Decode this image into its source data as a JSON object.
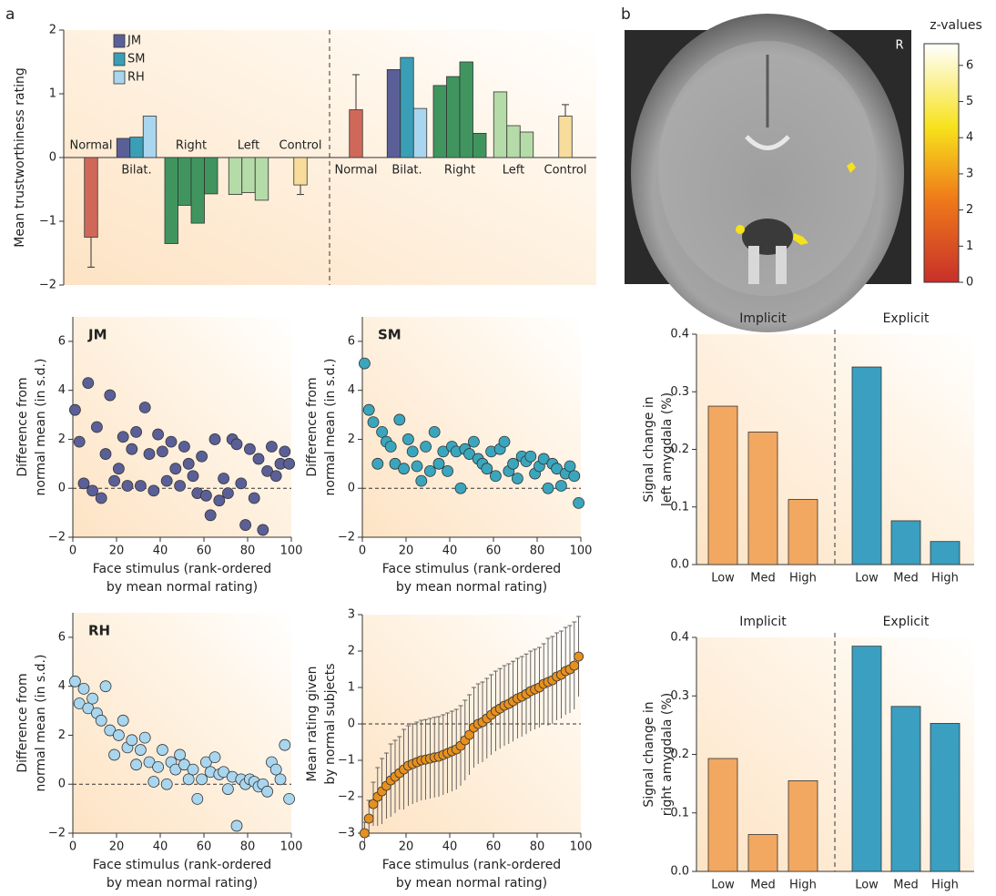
{
  "chart_data": [
    {
      "type": "grouped-bar",
      "panel": "a",
      "ylabel": "Mean trustworthiness rating",
      "ylim": [
        -2,
        2
      ],
      "yticks": [
        {
          "value": -2,
          "label": "−2"
        },
        {
          "value": -1,
          "label": "−1"
        },
        0,
        1,
        2
      ],
      "series": [
        {
          "name": "JM",
          "color": "#5b5f98"
        },
        {
          "name": "SM",
          "color": "#3a9fb6"
        },
        {
          "name": "RH",
          "color": "#a9d6ee"
        }
      ],
      "groups": [
        {
          "label": "Normal",
          "values": [
            -1.25
          ],
          "errors": [
            0.47
          ],
          "colors": [
            "#d0685a"
          ]
        },
        {
          "label": "Bilat.",
          "values": [
            0.3,
            0.32,
            0.65
          ],
          "colors": [
            "#5b5f98",
            "#3a9fb6",
            "#a9d6ee"
          ]
        },
        {
          "label": "Right",
          "values": [
            -1.35,
            -0.75,
            -1.03,
            -0.57
          ],
          "colors": [
            "#40955f",
            "#40955f",
            "#40955f",
            "#40955f"
          ]
        },
        {
          "label": "Left",
          "values": [
            -0.58,
            -0.55,
            -0.67
          ],
          "colors": [
            "#b4dba8",
            "#b4dba8",
            "#b4dba8"
          ]
        },
        {
          "label": "Control",
          "values": [
            -0.43
          ],
          "errors": [
            0.15
          ],
          "colors": [
            "#f8dc9c"
          ]
        },
        {
          "label": "Normal",
          "values": [
            0.75
          ],
          "errors": [
            0.55
          ],
          "colors": [
            "#d0685a"
          ]
        },
        {
          "label": "Bilat.",
          "values": [
            1.38,
            1.57,
            0.77
          ],
          "colors": [
            "#5b5f98",
            "#3a9fb6",
            "#a9d6ee"
          ]
        },
        {
          "label": "Right",
          "values": [
            1.13,
            1.27,
            1.5,
            0.38
          ],
          "colors": [
            "#40955f",
            "#40955f",
            "#40955f",
            "#40955f"
          ]
        },
        {
          "label": "Left",
          "values": [
            1.03,
            0.5,
            0.4
          ],
          "colors": [
            "#b4dba8",
            "#b4dba8",
            "#b4dba8"
          ]
        },
        {
          "label": "Control",
          "values": [
            0.65
          ],
          "errors": [
            0.18
          ],
          "colors": [
            "#f8dc9c"
          ]
        }
      ]
    },
    {
      "type": "colorbar",
      "panel": "b",
      "title": "z-values",
      "annotation": "R",
      "ylim": [
        0,
        6.6
      ],
      "yticks": [
        0,
        1,
        2,
        3,
        4,
        5,
        6
      ]
    },
    {
      "type": "scatter",
      "title": "JM",
      "color": "#5b5f98",
      "ylabel": [
        "Difference from",
        "normal mean (in s.d.)"
      ],
      "xlabel": [
        "Face stimulus (rank-ordered",
        "by mean normal rating)"
      ],
      "xlim": [
        0,
        100
      ],
      "xticks": [
        0,
        20,
        40,
        60,
        80,
        100
      ],
      "ylim": [
        -2,
        7
      ],
      "yticks": [
        {
          "value": -2,
          "label": "−2"
        },
        0,
        2,
        4,
        6
      ],
      "x": [
        1,
        3,
        5,
        7,
        9,
        11,
        13,
        15,
        17,
        19,
        21,
        23,
        25,
        27,
        29,
        31,
        33,
        35,
        37,
        39,
        41,
        43,
        45,
        47,
        49,
        51,
        53,
        55,
        57,
        59,
        61,
        63,
        65,
        67,
        69,
        71,
        73,
        75,
        77,
        79,
        81,
        83,
        85,
        87,
        89,
        91,
        93,
        95,
        97,
        99
      ],
      "values": [
        3.2,
        1.9,
        0.2,
        4.3,
        -0.1,
        2.5,
        -0.4,
        1.4,
        3.8,
        0.3,
        0.8,
        2.1,
        0.1,
        1.6,
        2.3,
        0.1,
        3.3,
        1.4,
        -0.1,
        2.2,
        1.5,
        0.3,
        1.9,
        0.8,
        0.1,
        1.7,
        1.0,
        0.5,
        -0.2,
        1.3,
        -0.3,
        -1.1,
        2.0,
        -0.5,
        0.4,
        -0.2,
        2.0,
        1.8,
        0.2,
        -1.5,
        1.6,
        -0.4,
        1.2,
        -1.7,
        0.7,
        1.7,
        0.5,
        1.0,
        1.5,
        1.0
      ]
    },
    {
      "type": "scatter",
      "title": "SM",
      "color": "#3aa6bd",
      "ylabel": [
        "Difference from",
        "normal mean (in s.d.)"
      ],
      "xlabel": [
        "Face stimulus (rank-ordered",
        "by mean normal rating)"
      ],
      "xlim": [
        0,
        100
      ],
      "xticks": [
        0,
        20,
        40,
        60,
        80,
        100
      ],
      "ylim": [
        -2,
        7
      ],
      "yticks": [
        {
          "value": -2,
          "label": "−2"
        },
        0,
        2,
        4,
        6
      ],
      "x": [
        1,
        3,
        5,
        7,
        9,
        11,
        13,
        15,
        17,
        19,
        21,
        23,
        25,
        27,
        29,
        31,
        33,
        35,
        37,
        39,
        41,
        43,
        45,
        47,
        49,
        51,
        53,
        55,
        57,
        59,
        61,
        63,
        65,
        67,
        69,
        71,
        73,
        75,
        77,
        79,
        81,
        83,
        85,
        87,
        89,
        91,
        93,
        95,
        97,
        99
      ],
      "values": [
        5.1,
        3.2,
        2.7,
        1.0,
        2.3,
        1.9,
        1.7,
        1.0,
        2.8,
        0.8,
        2.0,
        1.5,
        0.9,
        0.3,
        1.7,
        0.7,
        2.3,
        1.0,
        1.5,
        0.7,
        1.7,
        1.5,
        0.0,
        1.6,
        1.4,
        1.9,
        1.2,
        1.0,
        0.8,
        1.5,
        0.5,
        1.6,
        1.9,
        0.7,
        1.0,
        0.4,
        1.3,
        1.1,
        1.3,
        0.6,
        0.9,
        1.2,
        0.0,
        1.0,
        0.8,
        0.1,
        0.6,
        0.9,
        0.5,
        -0.6
      ]
    },
    {
      "type": "scatter",
      "title": "RH",
      "color": "#a9d6ee",
      "ylabel": [
        "Difference from",
        "normal mean (in s.d.)"
      ],
      "xlabel": [
        "Face stimulus (rank-ordered",
        "by mean normal rating)"
      ],
      "xlim": [
        0,
        100
      ],
      "xticks": [
        0,
        20,
        40,
        60,
        80,
        100
      ],
      "ylim": [
        -2,
        7
      ],
      "yticks": [
        {
          "value": -2,
          "label": "−2"
        },
        0,
        2,
        4,
        6
      ],
      "x": [
        1,
        3,
        5,
        7,
        9,
        11,
        13,
        15,
        17,
        19,
        21,
        23,
        25,
        27,
        29,
        31,
        33,
        35,
        37,
        39,
        41,
        43,
        45,
        47,
        49,
        51,
        53,
        55,
        57,
        59,
        61,
        63,
        65,
        67,
        69,
        71,
        73,
        75,
        77,
        79,
        81,
        83,
        85,
        87,
        89,
        91,
        93,
        95,
        97,
        99
      ],
      "values": [
        4.2,
        3.3,
        3.9,
        3.1,
        3.5,
        2.9,
        2.6,
        4.0,
        2.2,
        1.2,
        2.0,
        2.6,
        1.5,
        1.8,
        0.8,
        1.4,
        1.9,
        0.9,
        0.1,
        0.7,
        1.4,
        0.0,
        0.9,
        0.6,
        1.2,
        0.8,
        0.2,
        0.6,
        -0.6,
        0.2,
        0.9,
        0.5,
        1.1,
        0.4,
        0.5,
        -0.2,
        0.3,
        -1.7,
        0.2,
        0.0,
        0.2,
        0.1,
        -0.1,
        0.0,
        -0.3,
        0.9,
        0.6,
        0.2,
        1.6,
        -0.6
      ]
    },
    {
      "type": "errorbar-scatter",
      "color": "#e8901e",
      "ylabel": [
        "Mean rating given",
        "by normal subjects"
      ],
      "xlabel": [
        "Face stimulus (rank-ordered",
        "by mean normal rating)"
      ],
      "xlim": [
        0,
        100
      ],
      "xticks": [
        0,
        20,
        40,
        60,
        80,
        100
      ],
      "ylim": [
        -3,
        3
      ],
      "yticks": [
        {
          "value": -3,
          "label": "−3"
        },
        {
          "value": -2,
          "label": "−2"
        },
        {
          "value": -1,
          "label": "−1"
        },
        0,
        1,
        2,
        3
      ],
      "x": [
        1,
        3,
        5,
        7,
        9,
        11,
        13,
        15,
        17,
        19,
        21,
        23,
        25,
        27,
        29,
        31,
        33,
        35,
        37,
        39,
        41,
        43,
        45,
        47,
        49,
        51,
        53,
        55,
        57,
        59,
        61,
        63,
        65,
        67,
        69,
        71,
        73,
        75,
        77,
        79,
        81,
        83,
        85,
        87,
        89,
        91,
        93,
        95,
        97,
        99
      ],
      "values": [
        -3.0,
        -2.6,
        -2.2,
        -2.0,
        -1.85,
        -1.7,
        -1.55,
        -1.45,
        -1.35,
        -1.25,
        -1.15,
        -1.1,
        -1.05,
        -1.0,
        -0.98,
        -0.95,
        -0.92,
        -0.9,
        -0.85,
        -0.8,
        -0.75,
        -0.7,
        -0.6,
        -0.45,
        -0.3,
        -0.1,
        0.0,
        0.05,
        0.15,
        0.25,
        0.35,
        0.42,
        0.5,
        0.55,
        0.62,
        0.7,
        0.75,
        0.82,
        0.9,
        0.95,
        1.0,
        1.1,
        1.15,
        1.2,
        1.3,
        1.35,
        1.45,
        1.5,
        1.6,
        1.85
      ],
      "errors": [
        0.3,
        0.5,
        0.6,
        0.8,
        0.9,
        0.9,
        1.0,
        1.0,
        1.0,
        1.1,
        1.1,
        1.1,
        1.1,
        1.1,
        1.1,
        1.1,
        1.1,
        1.1,
        1.1,
        1.1,
        1.1,
        1.1,
        1.1,
        1.1,
        1.1,
        1.1,
        1.1,
        1.1,
        1.1,
        1.1,
        1.1,
        1.1,
        1.1,
        1.1,
        1.1,
        1.1,
        1.1,
        1.1,
        1.1,
        1.1,
        1.1,
        1.1,
        1.2,
        1.2,
        1.2,
        1.2,
        1.2,
        1.2,
        1.2,
        1.1
      ]
    },
    {
      "type": "bar",
      "ylabel": [
        "Signal change in",
        "left amygdala (%)"
      ],
      "ylim": [
        0,
        0.4
      ],
      "yticks": [
        {
          "value": 0,
          "label": "0.0"
        },
        0.1,
        0.2,
        0.3,
        0.4
      ],
      "groups": [
        {
          "label": "Implicit",
          "color": "#f2a860",
          "categories": [
            "Low",
            "Med",
            "High"
          ],
          "values": [
            0.275,
            0.23,
            0.113
          ]
        },
        {
          "label": "Explicit",
          "color": "#3a9fc0",
          "categories": [
            "Low",
            "Med",
            "High"
          ],
          "values": [
            0.343,
            0.076,
            0.04
          ]
        }
      ]
    },
    {
      "type": "bar",
      "ylabel": [
        "Signal change in",
        "right amygdala (%)"
      ],
      "ylim": [
        0,
        0.4
      ],
      "yticks": [
        {
          "value": 0,
          "label": "0.0"
        },
        0.1,
        0.2,
        0.3,
        0.4
      ],
      "groups": [
        {
          "label": "Implicit",
          "color": "#f2a860",
          "categories": [
            "Low",
            "Med",
            "High"
          ],
          "values": [
            0.193,
            0.063,
            0.155
          ]
        },
        {
          "label": "Explicit",
          "color": "#3a9fc0",
          "categories": [
            "Low",
            "Med",
            "High"
          ],
          "values": [
            0.385,
            0.282,
            0.253
          ]
        }
      ]
    }
  ]
}
